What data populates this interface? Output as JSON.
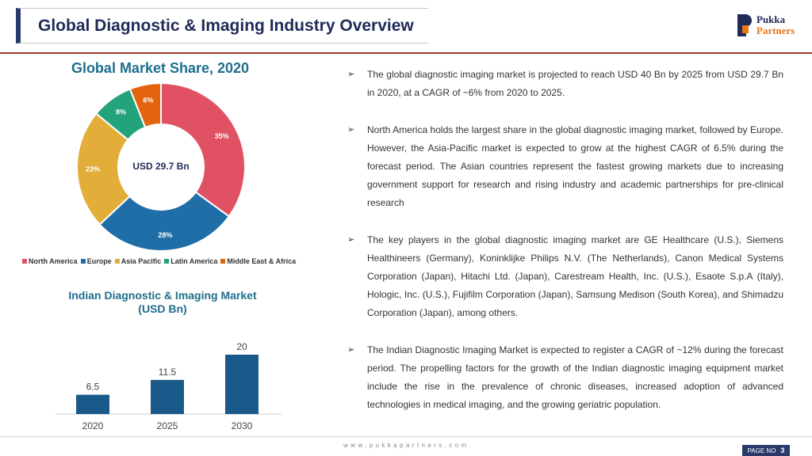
{
  "header": {
    "title": "Global Diagnostic & Imaging Industry Overview",
    "logo_line1": "Pukka",
    "logo_line2": "Partners"
  },
  "donut": {
    "title": "Global Market Share, 2020",
    "center_label": "USD 29.7 Bn"
  },
  "bar": {
    "title_line1": "Indian Diagnostic & Imaging Market",
    "title_line2": "(USD Bn)"
  },
  "chart_data": [
    {
      "type": "pie",
      "title": "Global Market Share, 2020",
      "center_label": "USD 29.7 Bn",
      "legend_position": "bottom",
      "slices": [
        {
          "label": "North America",
          "value": 35,
          "display": "35%",
          "color": "#e05263"
        },
        {
          "label": "Europe",
          "value": 28,
          "display": "28%",
          "color": "#1f6ea8"
        },
        {
          "label": "Asia Pacific",
          "value": 23,
          "display": "23%",
          "color": "#e3ad3a"
        },
        {
          "label": "Latin America",
          "value": 8,
          "display": "8%",
          "color": "#23a37c"
        },
        {
          "label": "Middle East & Africa",
          "value": 6,
          "display": "6%",
          "color": "#e3640f"
        }
      ]
    },
    {
      "type": "bar",
      "title": "Indian Diagnostic & Imaging Market (USD Bn)",
      "categories": [
        "2020",
        "2025",
        "2030"
      ],
      "values": [
        6.5,
        11.5,
        20
      ],
      "value_labels": [
        "6.5",
        "11.5",
        "20"
      ],
      "ylim": [
        0,
        20
      ],
      "color": "#1a5a8a",
      "grid": false
    }
  ],
  "bullets": [
    "The global diagnostic imaging market is projected to reach USD 40 Bn by 2025 from USD 29.7 Bn in 2020, at a CAGR of ~6% from 2020 to 2025.",
    "North America holds the largest share in the global diagnostic imaging market, followed by Europe. However, the Asia-Pacific market is expected to grow at the highest CAGR of 6.5% during the forecast period. The Asian countries represent the fastest growing markets due to increasing government support for research and rising industry and academic partnerships for pre-clinical research",
    "The key players in the global diagnostic imaging market are GE Healthcare (U.S.), Siemens Healthineers (Germany), Koninklijke Philips N.V. (The Netherlands), Canon Medical Systems Corporation (Japan), Hitachi Ltd. (Japan), Carestream Health, Inc. (U.S.), Esaote S.p.A (Italy), Hologic, Inc. (U.S.), Fujifilm Corporation (Japan), Samsung Medison (South Korea), and Shimadzu Corporation (Japan), among others.",
    "The Indian Diagnostic Imaging Market is expected to register a CAGR of ~12% during the forecast period. The propelling factors for the growth of the Indian diagnostic imaging equipment market include the rise in the prevalence of chronic diseases, increased adoption of advanced technologies in medical imaging, and the growing geriatric population."
  ],
  "footer": {
    "url": "www.pukkapartners.com",
    "page_label": "PAGE NO",
    "page_number": "3"
  }
}
